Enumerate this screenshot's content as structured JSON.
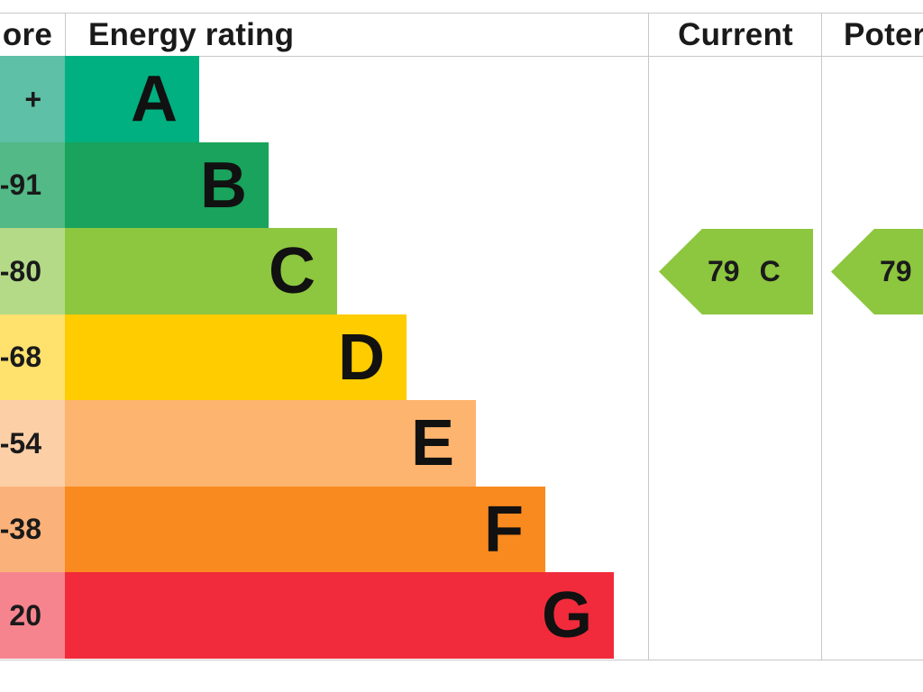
{
  "header": {
    "score_label": "ore",
    "rating_label": "Energy rating",
    "current_label": "Current",
    "potential_label": "Poter"
  },
  "chart_data": {
    "type": "bar",
    "categories": [
      "A",
      "B",
      "C",
      "D",
      "E",
      "F",
      "G"
    ],
    "score_ranges": [
      "+",
      "-91",
      "-80",
      "-68",
      "-54",
      "-38",
      "20"
    ],
    "values": [
      1,
      2,
      3,
      4,
      5,
      6,
      7
    ],
    "colors": {
      "bars": [
        "#00b080",
        "#19a35c",
        "#8dc63f",
        "#ffcc00",
        "#fdb46e",
        "#f98a1f",
        "#f12b3b"
      ],
      "score_cells": [
        "#5ec0a6",
        "#52b987",
        "#b4da88",
        "#ffe16d",
        "#fdcfa6",
        "#fbb27a",
        "#f6848e"
      ]
    },
    "current": {
      "value": "79",
      "band": "C",
      "color": "#8dc63f"
    },
    "potential": {
      "value": "79",
      "band": "C",
      "color": "#8dc63f"
    }
  }
}
